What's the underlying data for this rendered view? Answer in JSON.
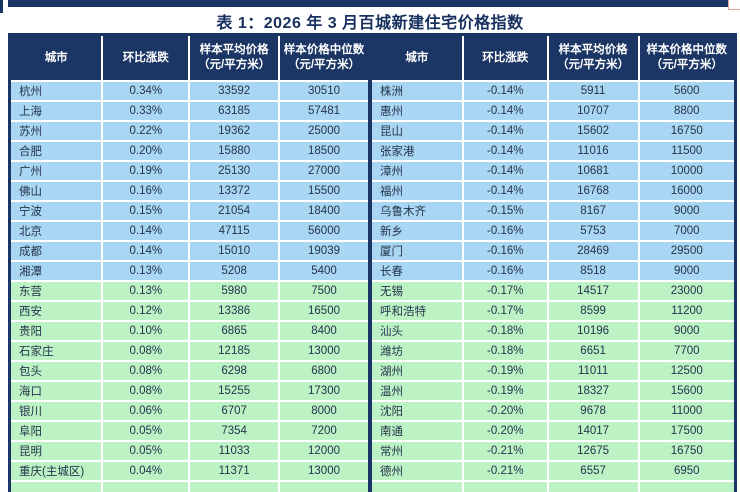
{
  "title": "表 1：2026 年 3 月百城新建住宅价格指数",
  "headers": {
    "city": "城市",
    "mom": "环比涨跌",
    "avg_l1": "样本平均价格",
    "avg_l2": "（元/平方米）",
    "med_l1": "样本价格中位数",
    "med_l2": "（元/平方米）"
  },
  "colors": {
    "navy": "#1b3564",
    "blue_row": "#a9d6f2",
    "green_row": "#bdf2c4",
    "header_text": "#ffffff",
    "cell_text": "#24344d",
    "title_text": "#17305e"
  },
  "left_rows": [
    {
      "city": "杭州",
      "mom": "0.34%",
      "avg": "33592",
      "median": "30510",
      "tone": "blue"
    },
    {
      "city": "上海",
      "mom": "0.33%",
      "avg": "63185",
      "median": "57481",
      "tone": "blue"
    },
    {
      "city": "苏州",
      "mom": "0.22%",
      "avg": "19362",
      "median": "25000",
      "tone": "blue"
    },
    {
      "city": "合肥",
      "mom": "0.20%",
      "avg": "15880",
      "median": "18500",
      "tone": "blue"
    },
    {
      "city": "广州",
      "mom": "0.19%",
      "avg": "25130",
      "median": "27000",
      "tone": "blue"
    },
    {
      "city": "佛山",
      "mom": "0.16%",
      "avg": "13372",
      "median": "15500",
      "tone": "blue"
    },
    {
      "city": "宁波",
      "mom": "0.15%",
      "avg": "21054",
      "median": "18400",
      "tone": "blue"
    },
    {
      "city": "北京",
      "mom": "0.14%",
      "avg": "47115",
      "median": "56000",
      "tone": "blue"
    },
    {
      "city": "成都",
      "mom": "0.14%",
      "avg": "15010",
      "median": "19039",
      "tone": "blue"
    },
    {
      "city": "湘潭",
      "mom": "0.13%",
      "avg": "5208",
      "median": "5400",
      "tone": "blue"
    },
    {
      "city": "东营",
      "mom": "0.13%",
      "avg": "5980",
      "median": "7500",
      "tone": "green"
    },
    {
      "city": "西安",
      "mom": "0.12%",
      "avg": "13386",
      "median": "16500",
      "tone": "green"
    },
    {
      "city": "贵阳",
      "mom": "0.10%",
      "avg": "6865",
      "median": "8400",
      "tone": "green"
    },
    {
      "city": "石家庄",
      "mom": "0.08%",
      "avg": "12185",
      "median": "13000",
      "tone": "green"
    },
    {
      "city": "包头",
      "mom": "0.08%",
      "avg": "6298",
      "median": "6800",
      "tone": "green"
    },
    {
      "city": "海口",
      "mom": "0.08%",
      "avg": "15255",
      "median": "17300",
      "tone": "green"
    },
    {
      "city": "银川",
      "mom": "0.06%",
      "avg": "6707",
      "median": "8000",
      "tone": "green"
    },
    {
      "city": "阜阳",
      "mom": "0.05%",
      "avg": "7354",
      "median": "7200",
      "tone": "green"
    },
    {
      "city": "昆明",
      "mom": "0.05%",
      "avg": "11033",
      "median": "12000",
      "tone": "green"
    },
    {
      "city": "重庆(主城区)",
      "mom": "0.04%",
      "avg": "11371",
      "median": "13000",
      "tone": "green"
    }
  ],
  "right_rows": [
    {
      "city": "株洲",
      "mom": "-0.14%",
      "avg": "5911",
      "median": "5600",
      "tone": "blue"
    },
    {
      "city": "惠州",
      "mom": "-0.14%",
      "avg": "10707",
      "median": "8800",
      "tone": "blue"
    },
    {
      "city": "昆山",
      "mom": "-0.14%",
      "avg": "15602",
      "median": "16750",
      "tone": "blue"
    },
    {
      "city": "张家港",
      "mom": "-0.14%",
      "avg": "11016",
      "median": "11500",
      "tone": "blue"
    },
    {
      "city": "漳州",
      "mom": "-0.14%",
      "avg": "10681",
      "median": "10000",
      "tone": "blue"
    },
    {
      "city": "福州",
      "mom": "-0.14%",
      "avg": "16768",
      "median": "16000",
      "tone": "blue"
    },
    {
      "city": "乌鲁木齐",
      "mom": "-0.15%",
      "avg": "8167",
      "median": "9000",
      "tone": "blue"
    },
    {
      "city": "新乡",
      "mom": "-0.16%",
      "avg": "5753",
      "median": "7000",
      "tone": "blue"
    },
    {
      "city": "厦门",
      "mom": "-0.16%",
      "avg": "28469",
      "median": "29500",
      "tone": "blue"
    },
    {
      "city": "长春",
      "mom": "-0.16%",
      "avg": "8518",
      "median": "9000",
      "tone": "blue"
    },
    {
      "city": "无锡",
      "mom": "-0.17%",
      "avg": "14517",
      "median": "23000",
      "tone": "green"
    },
    {
      "city": "呼和浩特",
      "mom": "-0.17%",
      "avg": "8599",
      "median": "11200",
      "tone": "green"
    },
    {
      "city": "汕头",
      "mom": "-0.18%",
      "avg": "10196",
      "median": "9000",
      "tone": "green"
    },
    {
      "city": "潍坊",
      "mom": "-0.18%",
      "avg": "6651",
      "median": "7700",
      "tone": "green"
    },
    {
      "city": "湖州",
      "mom": "-0.19%",
      "avg": "11011",
      "median": "12500",
      "tone": "green"
    },
    {
      "city": "温州",
      "mom": "-0.19%",
      "avg": "18327",
      "median": "15600",
      "tone": "green"
    },
    {
      "city": "沈阳",
      "mom": "-0.20%",
      "avg": "9678",
      "median": "11000",
      "tone": "green"
    },
    {
      "city": "南通",
      "mom": "-0.20%",
      "avg": "14017",
      "median": "17500",
      "tone": "green"
    },
    {
      "city": "常州",
      "mom": "-0.21%",
      "avg": "12675",
      "median": "16750",
      "tone": "green"
    },
    {
      "city": "德州",
      "mom": "-0.21%",
      "avg": "6557",
      "median": "6950",
      "tone": "green"
    }
  ]
}
